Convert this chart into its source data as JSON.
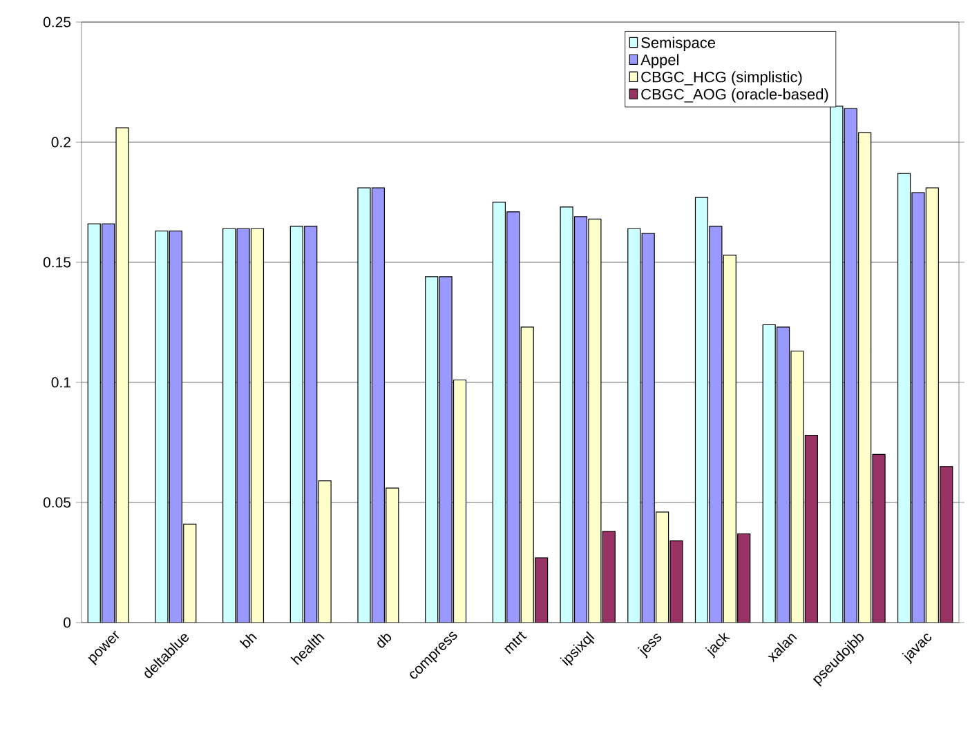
{
  "chart_data": {
    "type": "bar",
    "categories": [
      "power",
      "deltablue",
      "bh",
      "health",
      "db",
      "compress",
      "mtrt",
      "ipsixql",
      "jess",
      "jack",
      "xalan",
      "pseudojbb",
      "javac"
    ],
    "series": [
      {
        "name": "Semispace",
        "color": "#ccffff",
        "values": [
          0.166,
          0.163,
          0.164,
          0.165,
          0.181,
          0.144,
          0.175,
          0.173,
          0.164,
          0.177,
          0.124,
          0.215,
          0.187
        ]
      },
      {
        "name": "Appel",
        "color": "#9999ff",
        "values": [
          0.166,
          0.163,
          0.164,
          0.165,
          0.181,
          0.144,
          0.171,
          0.169,
          0.162,
          0.165,
          0.123,
          0.214,
          0.179
        ]
      },
      {
        "name": "CBGC_HCG (simplistic)",
        "color": "#ffffcc",
        "values": [
          0.206,
          0.041,
          0.164,
          0.059,
          0.056,
          0.101,
          0.123,
          0.168,
          0.046,
          0.153,
          0.113,
          0.204,
          0.181
        ]
      },
      {
        "name": "CBGC_AOG (oracle-based)",
        "color": "#993366",
        "values": [
          null,
          null,
          null,
          null,
          null,
          null,
          0.027,
          0.038,
          0.034,
          0.037,
          0.078,
          0.07,
          0.065
        ]
      }
    ],
    "ylim": [
      0,
      0.25
    ],
    "yticks": [
      0,
      0.05,
      0.1,
      0.15,
      0.2,
      0.25
    ],
    "grid": "y",
    "legend": "top right"
  }
}
